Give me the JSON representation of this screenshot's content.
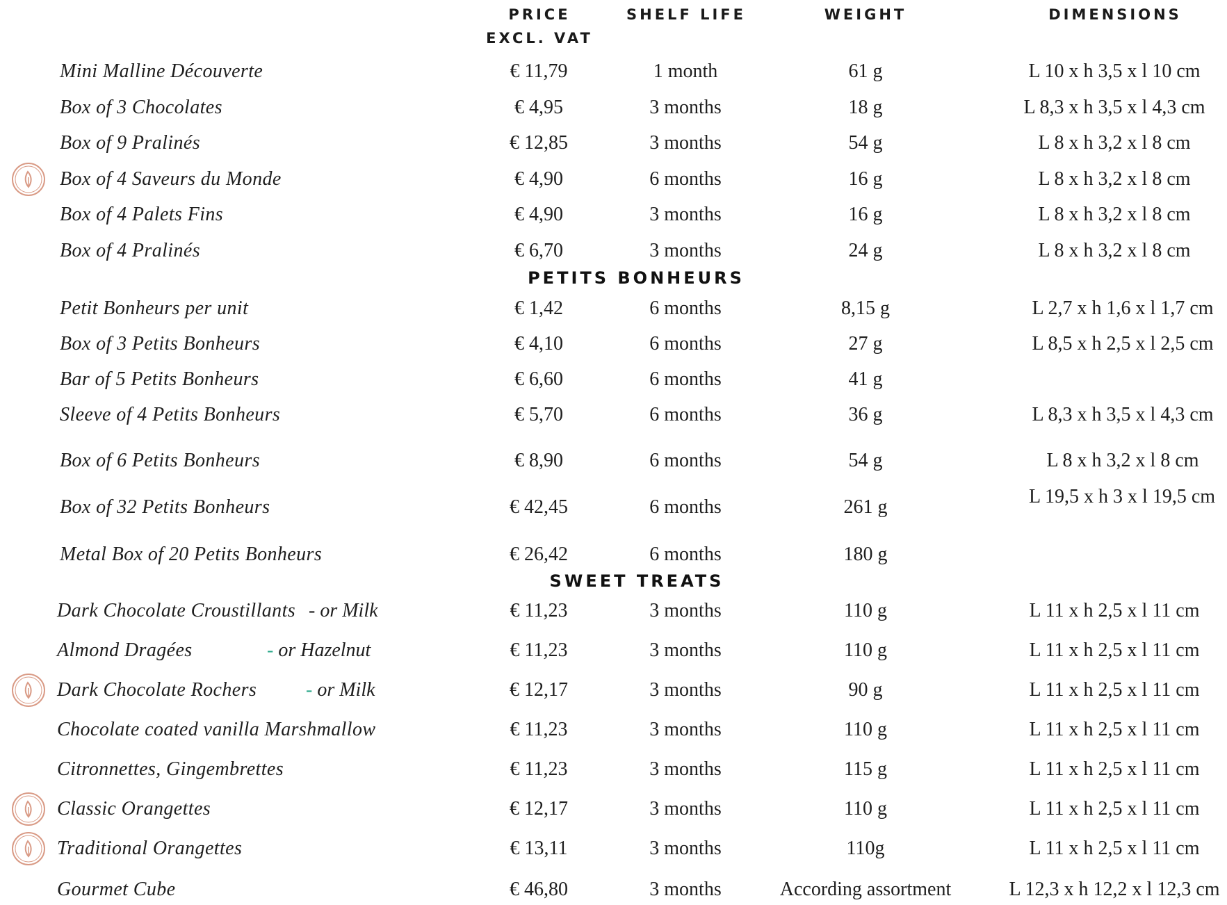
{
  "colors": {
    "badge": "#d99a85",
    "dash": "#2aa88a"
  },
  "headers": {
    "price_line1": "PRICE",
    "price_line2": "EXCL. VAT",
    "shelf": "SHELF LIFE",
    "weight": "WEIGHT",
    "dimensions": "DIMENSIONS"
  },
  "badge_icon": "vegan-leaf-icon",
  "sections": {
    "petits": "PETITS BONHEURS",
    "sweet": "SWEET TREATS"
  },
  "boxes": [
    {
      "name": "Mini Malline Découverte",
      "price": "€ 11,79",
      "shelf": "1 month",
      "weight": "61 g",
      "dim": "L 10 x h 3,5 x l 10 cm"
    },
    {
      "name": "Box of 3 Chocolates",
      "price": "€ 4,95",
      "shelf": "3 months",
      "weight": "18 g",
      "dim": "L 8,3 x h 3,5 x l 4,3 cm"
    },
    {
      "name": "Box of 9 Pralinés",
      "price": "€ 12,85",
      "shelf": "3 months",
      "weight": "54 g",
      "dim": "L 8 x h 3,2 x l 8 cm"
    },
    {
      "name": "Box of 4 Saveurs du Monde",
      "price": "€ 4,90",
      "shelf": "6 months",
      "weight": "16 g",
      "dim": "L 8 x h 3,2 x l 8 cm"
    },
    {
      "name": "Box of 4 Palets Fins",
      "price": "€ 4,90",
      "shelf": "3 months",
      "weight": "16 g",
      "dim": "L 8 x h 3,2 x l 8 cm"
    },
    {
      "name": "Box of 4 Pralinés",
      "price": "€ 6,70",
      "shelf": "3 months",
      "weight": "24 g",
      "dim": "L 8 x h 3,2 x l 8 cm"
    }
  ],
  "petits": [
    {
      "name": "Petit Bonheurs per unit",
      "price": "€ 1,42",
      "shelf": "6 months",
      "weight": "8,15 g",
      "dim": "L 2,7 x h 1,6 x l 1,7 cm"
    },
    {
      "name": "Box of 3 Petits Bonheurs",
      "price": "€  4,10",
      "shelf": "6 months",
      "weight": "27 g",
      "dim": "L 8,5 x h 2,5 x l 2,5 cm"
    },
    {
      "name": "Bar of 5 Petits Bonheurs",
      "price": "€ 6,60",
      "shelf": "6 months",
      "weight": "41 g",
      "dim": ""
    },
    {
      "name": "Sleeve of 4 Petits Bonheurs",
      "price": "€ 5,70",
      "shelf": "6 months",
      "weight": "36 g",
      "dim": "L 8,3 x h 3,5 x l 4,3 cm"
    },
    {
      "name": "Box of 6 Petits Bonheurs",
      "price": "€ 8,90",
      "shelf": "6 months",
      "weight": "54 g",
      "dim": "L 8 x h 3,2 x l 8 cm"
    },
    {
      "name": "Box of 32 Petits Bonheurs",
      "price": "€ 42,45",
      "shelf": "6 months",
      "weight": "261 g",
      "dim": "L 19,5 x h 3 x l 19,5 cm"
    },
    {
      "name": "Metal Box of 20 Petits Bonheurs",
      "price": "€ 26,42",
      "shelf": "6 months",
      "weight": "180 g",
      "dim": ""
    }
  ],
  "sweet": [
    {
      "name": "Dark Chocolate Croustillants",
      "alt_dash": "- ",
      "alt": "or Milk",
      "price": "€ 11,23",
      "shelf": "3 months",
      "weight": "110 g",
      "dim": "L 11 x h 2,5 x l 11 cm"
    },
    {
      "name": "Almond Dragées",
      "alt_dash": "- ",
      "alt": "or Hazelnut",
      "price": "€ 11,23",
      "shelf": "3 months",
      "weight": "110 g",
      "dim": "L 11 x h 2,5 x l 11 cm"
    },
    {
      "name": "Dark Chocolate Rochers",
      "alt_dash": "- ",
      "alt": "or Milk",
      "price": "€ 12,17",
      "shelf": "3 months",
      "weight": "90 g",
      "dim": "L 11 x h 2,5 x l 11 cm"
    },
    {
      "name": "Chocolate coated vanilla Marshmallow",
      "price": "€ 11,23",
      "shelf": "3 months",
      "weight": "110 g",
      "dim": "L 11 x h 2,5 x l 11 cm"
    },
    {
      "name": "Citronnettes, Gingembrettes",
      "price": "€ 11,23",
      "shelf": "3 months",
      "weight": "115 g",
      "dim": "L 11 x h 2,5 x l 11 cm"
    },
    {
      "name": "Classic Orangettes",
      "price": "€ 12,17",
      "shelf": "3 months",
      "weight": "110 g",
      "dim": "L 11 x h 2,5 x l 11 cm"
    },
    {
      "name": "Traditional Orangettes",
      "price": "€ 13,11",
      "shelf": "3 months",
      "weight": "110g",
      "dim": "L 11 x h 2,5 x l 11 cm"
    },
    {
      "name": "Gourmet Cube",
      "price": "€ 46,80",
      "shelf": "3 months",
      "weight": "According assortment",
      "dim": "L 12,3 x h 12,2 x l 12,3 cm"
    }
  ]
}
